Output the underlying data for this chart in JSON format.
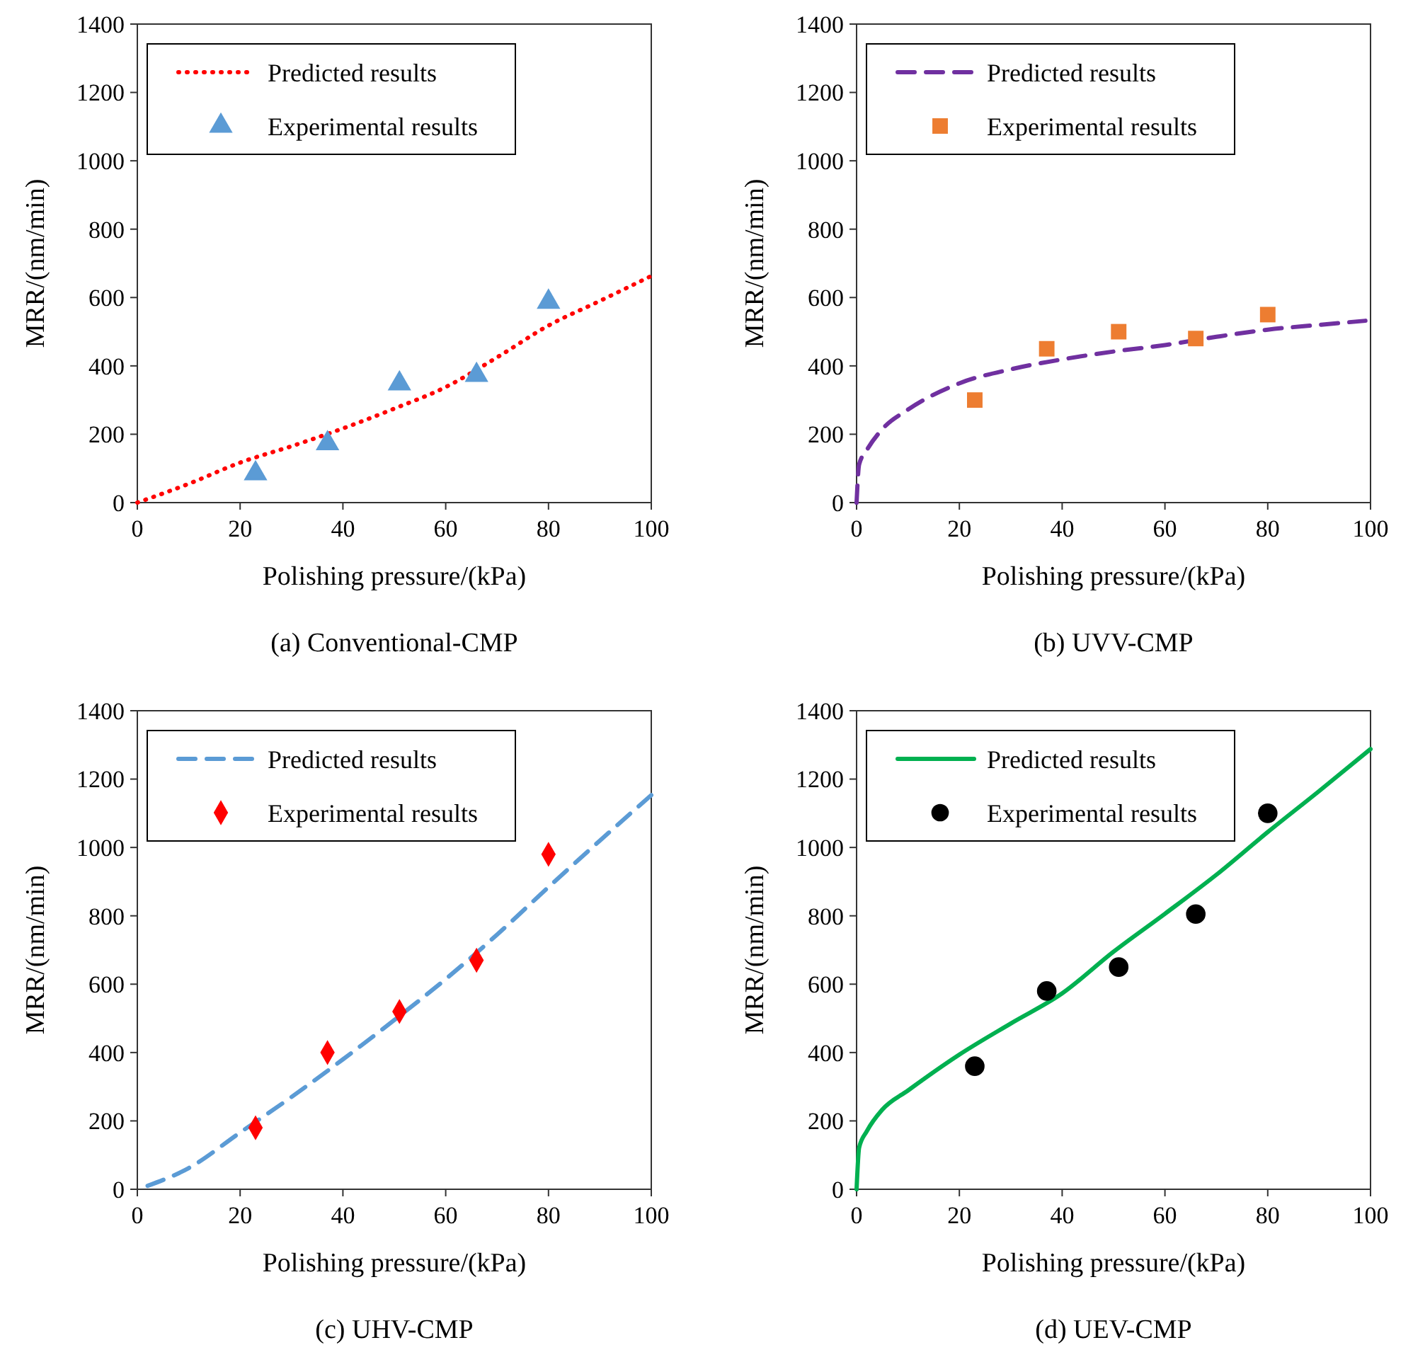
{
  "chart_data": [
    {
      "type": "line",
      "title": "(a) Conventional-CMP",
      "xlabel": "Polishing pressure/(kPa)",
      "ylabel": "MRR/(nm/min)",
      "xlim": [
        0,
        100
      ],
      "ylim": [
        0,
        1400
      ],
      "xticks": [
        0,
        20,
        40,
        60,
        80,
        100
      ],
      "yticks": [
        0,
        200,
        400,
        600,
        800,
        1000,
        1200,
        1400
      ],
      "legend": "top left",
      "series": [
        {
          "name": "Predicted results",
          "color": "#ff0000",
          "line_style": "dotted",
          "marker": "none",
          "x": [
            0,
            10,
            20,
            30,
            40,
            50,
            60,
            70,
            80,
            90,
            100
          ],
          "values": [
            0,
            55,
            117,
            165,
            217,
            275,
            338,
            425,
            518,
            590,
            663
          ]
        },
        {
          "name": "Experimental results",
          "type": "scatter",
          "color": "#5b9bd5",
          "marker": "triangle",
          "x": [
            23,
            37,
            51,
            66,
            80
          ],
          "values": [
            85,
            173,
            348,
            373,
            587
          ]
        }
      ]
    },
    {
      "type": "line",
      "title": "(b) UVV-CMP",
      "xlabel": "Polishing pressure/(kPa)",
      "ylabel": "MRR/(nm/min)",
      "xlim": [
        0,
        100
      ],
      "ylim": [
        0,
        1400
      ],
      "xticks": [
        0,
        20,
        40,
        60,
        80,
        100
      ],
      "yticks": [
        0,
        200,
        400,
        600,
        800,
        1000,
        1200,
        1400
      ],
      "legend": "top left",
      "series": [
        {
          "name": "Predicted results",
          "color": "#7030a0",
          "line_style": "dashed",
          "marker": "none",
          "x": [
            0,
            0.5,
            2,
            5,
            10,
            20,
            30,
            40,
            50,
            60,
            70,
            80,
            90,
            99
          ],
          "values": [
            0,
            112,
            154,
            215,
            272,
            349,
            390,
            419,
            442,
            461,
            485,
            506,
            520,
            532
          ]
        },
        {
          "name": "Experimental results",
          "type": "scatter",
          "color": "#ed7d31",
          "marker": "square",
          "x": [
            23,
            37,
            51,
            66,
            80
          ],
          "values": [
            300,
            450,
            500,
            480,
            550
          ]
        }
      ]
    },
    {
      "type": "line",
      "title": "(c) UHV-CMP",
      "xlabel": "Polishing pressure/(kPa)",
      "ylabel": "MRR/(nm/min)",
      "xlim": [
        0,
        100
      ],
      "ylim": [
        0,
        1400
      ],
      "xticks": [
        0,
        20,
        40,
        60,
        80,
        100
      ],
      "yticks": [
        0,
        200,
        400,
        600,
        800,
        1000,
        1200,
        1400
      ],
      "legend": "top left",
      "series": [
        {
          "name": "Predicted results",
          "color": "#5b9bd5",
          "line_style": "dashed",
          "marker": "none",
          "x": [
            2,
            10,
            20,
            30,
            40,
            50,
            60,
            70,
            80,
            90,
            100
          ],
          "values": [
            10,
            62,
            166,
            270,
            380,
            495,
            615,
            745,
            884,
            1020,
            1153
          ]
        },
        {
          "name": "Experimental results",
          "type": "scatter",
          "color": "#ff0000",
          "marker": "diamond",
          "x": [
            23,
            37,
            51,
            66,
            80
          ],
          "values": [
            180,
            400,
            520,
            670,
            980
          ]
        }
      ]
    },
    {
      "type": "line",
      "title": "(d) UEV-CMP",
      "xlabel": "Polishing pressure/(kPa)",
      "ylabel": "MRR/(nm/min)",
      "xlim": [
        0,
        100
      ],
      "ylim": [
        0,
        1400
      ],
      "xticks": [
        0,
        20,
        40,
        60,
        80,
        100
      ],
      "yticks": [
        0,
        200,
        400,
        600,
        800,
        1000,
        1200,
        1400
      ],
      "legend": "top left",
      "series": [
        {
          "name": "Predicted results",
          "color": "#00b050",
          "line_style": "solid",
          "marker": "none",
          "x": [
            0,
            0.5,
            2,
            5,
            10,
            20,
            30,
            40,
            50,
            60,
            70,
            80,
            90,
            100
          ],
          "values": [
            0,
            122,
            170,
            233,
            289,
            394,
            485,
            573,
            695,
            806,
            920,
            1045,
            1165,
            1288
          ]
        },
        {
          "name": "Experimental results",
          "type": "scatter",
          "color": "#000000",
          "marker": "circle",
          "x": [
            23,
            37,
            51,
            66,
            80
          ],
          "values": [
            360,
            580,
            650,
            805,
            1100
          ]
        }
      ]
    }
  ]
}
